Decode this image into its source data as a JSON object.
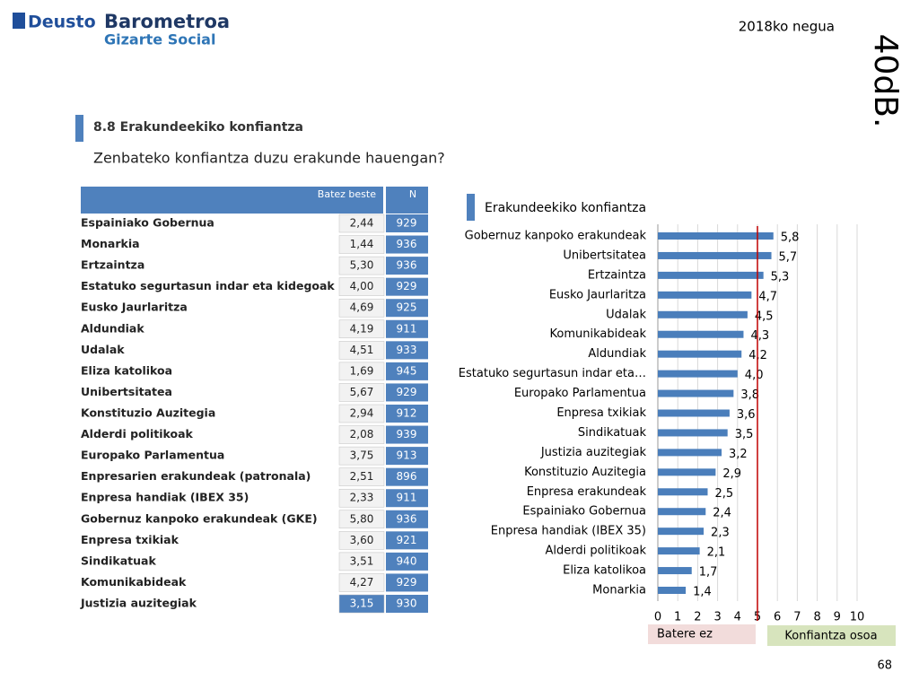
{
  "header": {
    "brand": "Deusto",
    "product": "Barometroa",
    "subproduct": "Gizarte Social",
    "period": "2018ko negua",
    "pollster": "40dB.",
    "section": "8.8 Erakundeekiko konfiantza",
    "question": "Zenbateko konfiantza duzu erakunde hauengan?",
    "page": "68"
  },
  "table": {
    "columns": [
      "Batez beste",
      "N"
    ],
    "rows": [
      [
        "Espainiako Gobernua",
        "2,44",
        929
      ],
      [
        "Monarkia",
        "1,44",
        936
      ],
      [
        "Ertzaintza",
        "5,30",
        936
      ],
      [
        "Estatuko segurtasun indar eta kidegoak",
        "4,00",
        929
      ],
      [
        "Eusko Jaurlaritza",
        "4,69",
        925
      ],
      [
        "Aldundiak",
        "4,19",
        911
      ],
      [
        "Udalak",
        "4,51",
        933
      ],
      [
        "Eliza katolikoa",
        "1,69",
        945
      ],
      [
        "Unibertsitatea",
        "5,67",
        929
      ],
      [
        "Konstituzio Auzitegia",
        "2,94",
        912
      ],
      [
        "Alderdi politikoak",
        "2,08",
        939
      ],
      [
        "Europako Parlamentua",
        "3,75",
        913
      ],
      [
        "Enpresarien erakundeak (patronala)",
        "2,51",
        896
      ],
      [
        "Enpresa handiak (IBEX 35)",
        "2,33",
        911
      ],
      [
        "Gobernuz kanpoko erakundeak (GKE)",
        "5,80",
        936
      ],
      [
        "Enpresa txikiak",
        "3,60",
        921
      ],
      [
        "Sindikatuak",
        "3,51",
        940
      ],
      [
        "Komunikabideak",
        "4,27",
        929
      ],
      [
        "Justizia auzitegiak",
        "3,15",
        930
      ]
    ]
  },
  "chart_data": {
    "type": "bar",
    "orientation": "horizontal",
    "title": "Erakundeekiko konfiantza",
    "categories": [
      "Gobernuz kanpoko erakundeak",
      "Unibertsitatea",
      "Ertzaintza",
      "Eusko Jaurlaritza",
      "Udalak",
      "Komunikabideak",
      "Aldundiak",
      "Estatuko segurtasun indar eta…",
      "Europako Parlamentua",
      "Enpresa txikiak",
      "Sindikatuak",
      "Justizia auzitegiak",
      "Konstituzio Auzitegia",
      "Enpresa erakundeak",
      "Espainiako Gobernua",
      "Enpresa handiak (IBEX 35)",
      "Alderdi politikoak",
      "Eliza katolikoa",
      "Monarkia"
    ],
    "values": [
      5.8,
      5.7,
      5.3,
      4.7,
      4.5,
      4.3,
      4.2,
      4.0,
      3.8,
      3.6,
      3.5,
      3.2,
      2.9,
      2.5,
      2.4,
      2.3,
      2.1,
      1.7,
      1.4
    ],
    "value_labels": [
      "5,8",
      "5,7",
      "5,3",
      "4,7",
      "4,5",
      "4,3",
      "4,2",
      "4,0",
      "3,8",
      "3,6",
      "3,5",
      "3,2",
      "2,9",
      "2,5",
      "2,4",
      "2,3",
      "2,1",
      "1,7",
      "1,4"
    ],
    "color": "#4a7ebb",
    "xlim": [
      0,
      10
    ],
    "xticks": [
      0,
      1,
      2,
      3,
      4,
      5,
      6,
      7,
      8,
      9,
      10
    ],
    "grid": true,
    "reference_line": {
      "value": 5,
      "color": "#c00000"
    },
    "scale_labels": [
      "Batere ez",
      "Konfiantza osoa"
    ]
  }
}
